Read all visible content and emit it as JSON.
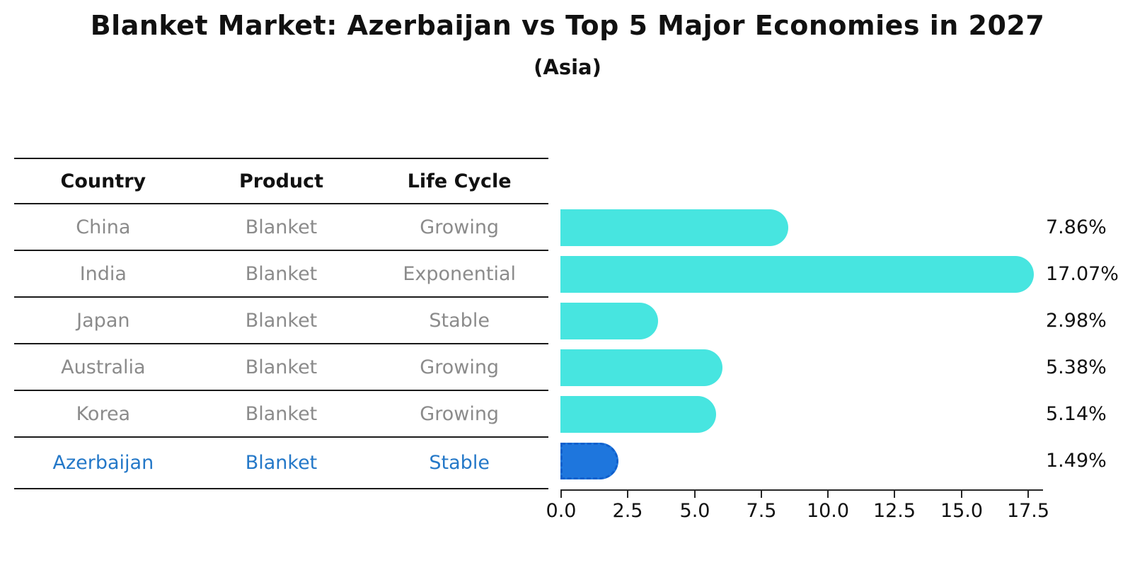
{
  "title": "Blanket Market: Azerbaijan vs Top 5 Major Economies in 2027",
  "subtitle": "(Asia)",
  "table": {
    "headers": [
      "Country",
      "Product",
      "Life Cycle"
    ],
    "rows": [
      {
        "country": "China",
        "product": "Blanket",
        "life_cycle": "Growing"
      },
      {
        "country": "India",
        "product": "Blanket",
        "life_cycle": "Exponential"
      },
      {
        "country": "Japan",
        "product": "Blanket",
        "life_cycle": "Stable"
      },
      {
        "country": "Australia",
        "product": "Blanket",
        "life_cycle": "Growing"
      },
      {
        "country": "Korea",
        "product": "Blanket",
        "life_cycle": "Growing"
      },
      {
        "country": "Azerbaijan",
        "product": "Blanket",
        "life_cycle": "Stable"
      }
    ]
  },
  "chart_data": {
    "type": "bar",
    "orientation": "horizontal",
    "categories": [
      "China",
      "India",
      "Japan",
      "Australia",
      "Korea",
      "Azerbaijan"
    ],
    "values": [
      7.86,
      17.07,
      2.98,
      5.38,
      5.14,
      1.49
    ],
    "value_labels": [
      "7.86%",
      "17.07%",
      "2.98%",
      "5.38%",
      "5.14%",
      "1.49%"
    ],
    "x_ticks": [
      "0.0",
      "2.5",
      "5.0",
      "7.5",
      "10.0",
      "12.5",
      "15.0",
      "17.5"
    ],
    "xlim": [
      0,
      17.5
    ],
    "grid": false,
    "legend": "none",
    "bar_color": "#47e5e0",
    "highlight_index": 5,
    "highlight_bar_color": "#1e76dd",
    "highlight_text_color": "#2478c8",
    "units": "percent"
  }
}
